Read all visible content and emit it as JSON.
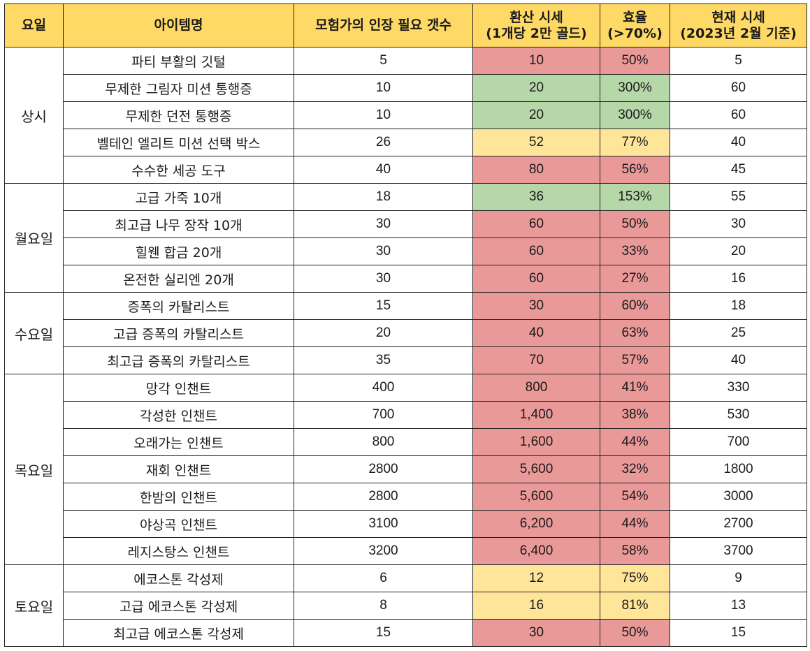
{
  "colors": {
    "header": "#ffd966",
    "red": "#ea9999",
    "green": "#b6d7a8",
    "yellow": "#ffe599"
  },
  "headers": {
    "day": "요일",
    "item": "아이템명",
    "seals": "모험가의 인장 필요 갯수",
    "converted_line1": "환산 시세",
    "converted_line2": "(1개당 2만 골드)",
    "efficiency_line1": "효율",
    "efficiency_line2": "(>70%)",
    "current_line1": "현재 시세",
    "current_line2": "(2023년 2월 기준)"
  },
  "groups": [
    {
      "day": "상시",
      "rows": [
        {
          "item": "파티 부활의 깃털",
          "seals": "5",
          "converted": "10",
          "efficiency": "50%",
          "current": "5",
          "rating": "red"
        },
        {
          "item": "무제한 그림자 미션 통행증",
          "seals": "10",
          "converted": "20",
          "efficiency": "300%",
          "current": "60",
          "rating": "green"
        },
        {
          "item": "무제한 던전 통행증",
          "seals": "10",
          "converted": "20",
          "efficiency": "300%",
          "current": "60",
          "rating": "green"
        },
        {
          "item": "벨테인 엘리트 미션 선택 박스",
          "seals": "26",
          "converted": "52",
          "efficiency": "77%",
          "current": "40",
          "rating": "yellow"
        },
        {
          "item": "수수한 세공 도구",
          "seals": "40",
          "converted": "80",
          "efficiency": "56%",
          "current": "45",
          "rating": "red"
        }
      ]
    },
    {
      "day": "월요일",
      "rows": [
        {
          "item": "고급 가죽 10개",
          "seals": "18",
          "converted": "36",
          "efficiency": "153%",
          "current": "55",
          "rating": "green"
        },
        {
          "item": "최고급 나무 장작 10개",
          "seals": "30",
          "converted": "60",
          "efficiency": "50%",
          "current": "30",
          "rating": "red"
        },
        {
          "item": "힐웬 합금 20개",
          "seals": "30",
          "converted": "60",
          "efficiency": "33%",
          "current": "20",
          "rating": "red"
        },
        {
          "item": "온전한 실리엔 20개",
          "seals": "30",
          "converted": "60",
          "efficiency": "27%",
          "current": "16",
          "rating": "red"
        }
      ]
    },
    {
      "day": "수요일",
      "rows": [
        {
          "item": "증폭의 카탈리스트",
          "seals": "15",
          "converted": "30",
          "efficiency": "60%",
          "current": "18",
          "rating": "red"
        },
        {
          "item": "고급 증폭의 카탈리스트",
          "seals": "20",
          "converted": "40",
          "efficiency": "63%",
          "current": "25",
          "rating": "red"
        },
        {
          "item": "최고급 증폭의 카탈리스트",
          "seals": "35",
          "converted": "70",
          "efficiency": "57%",
          "current": "40",
          "rating": "red"
        }
      ]
    },
    {
      "day": "목요일",
      "rows": [
        {
          "item": "망각 인챈트",
          "seals": "400",
          "converted": "800",
          "efficiency": "41%",
          "current": "330",
          "rating": "red"
        },
        {
          "item": "각성한 인챈트",
          "seals": "700",
          "converted": "1,400",
          "efficiency": "38%",
          "current": "530",
          "rating": "red"
        },
        {
          "item": "오래가는 인챈트",
          "seals": "800",
          "converted": "1,600",
          "efficiency": "44%",
          "current": "700",
          "rating": "red"
        },
        {
          "item": "재회 인챈트",
          "seals": "2800",
          "converted": "5,600",
          "efficiency": "32%",
          "current": "1800",
          "rating": "red"
        },
        {
          "item": "한밤의 인챈트",
          "seals": "2800",
          "converted": "5,600",
          "efficiency": "54%",
          "current": "3000",
          "rating": "red"
        },
        {
          "item": "야상곡 인챈트",
          "seals": "3100",
          "converted": "6,200",
          "efficiency": "44%",
          "current": "2700",
          "rating": "red"
        },
        {
          "item": "레지스탕스 인챈트",
          "seals": "3200",
          "converted": "6,400",
          "efficiency": "58%",
          "current": "3700",
          "rating": "red"
        }
      ]
    },
    {
      "day": "토요일",
      "rows": [
        {
          "item": "에코스톤 각성제",
          "seals": "6",
          "converted": "12",
          "efficiency": "75%",
          "current": "9",
          "rating": "yellow"
        },
        {
          "item": "고급 에코스톤 각성제",
          "seals": "8",
          "converted": "16",
          "efficiency": "81%",
          "current": "13",
          "rating": "yellow"
        },
        {
          "item": "최고급 에코스톤 각성제",
          "seals": "15",
          "converted": "30",
          "efficiency": "50%",
          "current": "15",
          "rating": "red"
        }
      ]
    }
  ]
}
